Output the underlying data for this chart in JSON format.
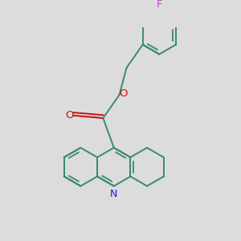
{
  "background_color": "#dcdcdc",
  "bond_color": "#3a8a6e",
  "N_color": "#1a1acc",
  "O_color": "#cc1111",
  "F_color": "#cc44bb",
  "line_width": 1.4,
  "figsize": [
    3.0,
    3.0
  ],
  "dpi": 100,
  "xlim": [
    -2.8,
    3.2
  ],
  "ylim": [
    -3.2,
    3.2
  ]
}
